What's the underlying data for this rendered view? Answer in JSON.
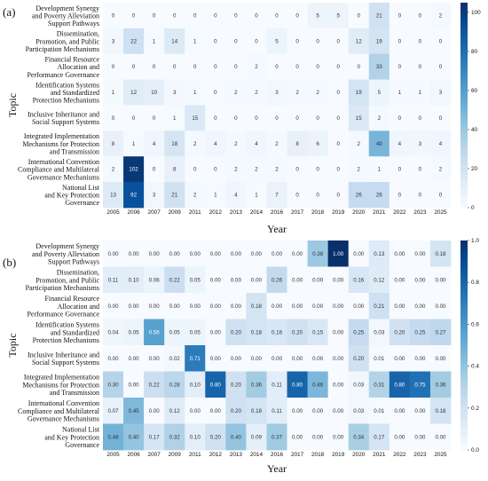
{
  "chart_data": [
    {
      "type": "heatmap",
      "panel_label": "(a)",
      "xlabel": "Year",
      "ylabel": "Topic",
      "x": [
        "2005",
        "2006",
        "2007",
        "2009",
        "2011",
        "2012",
        "2013",
        "2014",
        "2016",
        "2017",
        "2018",
        "2019",
        "2020",
        "2021",
        "2022",
        "2023",
        "2025"
      ],
      "y": [
        "Development Synergy\nand Poverty Alleviation\nSupport Pathways",
        "Dissemination,\nPromotion, and Public\nParticipation Mechanisms",
        "Financial Resource\nAllocation and\nPerformance Governance",
        "Identification Systems\nand Standardized\nProtection Mechanisms",
        "Inclusive Inheritance and\nSocial Support Systems",
        "Integrated Implementation\nMechanisms for Protection\nand Transmission",
        "International Convention\nCompliance and Multilateral\nGovernance Mechanisms",
        "National List\nand Key Protection\nGovernance"
      ],
      "values": [
        [
          0,
          0,
          0,
          0,
          0,
          0,
          0,
          0,
          0,
          0,
          5,
          5,
          0,
          21,
          0,
          0,
          2
        ],
        [
          3,
          22,
          1,
          14,
          1,
          0,
          0,
          0,
          5,
          0,
          0,
          0,
          12,
          19,
          0,
          0,
          0
        ],
        [
          0,
          0,
          0,
          0,
          0,
          0,
          0,
          2,
          0,
          0,
          0,
          0,
          0,
          33,
          0,
          0,
          0
        ],
        [
          1,
          12,
          10,
          3,
          1,
          0,
          2,
          2,
          3,
          2,
          2,
          0,
          19,
          5,
          1,
          1,
          3
        ],
        [
          0,
          0,
          0,
          1,
          15,
          0,
          0,
          0,
          0,
          0,
          0,
          0,
          15,
          2,
          0,
          0,
          0
        ],
        [
          8,
          1,
          4,
          18,
          2,
          4,
          2,
          4,
          2,
          8,
          6,
          0,
          2,
          49,
          4,
          3,
          4
        ],
        [
          2,
          102,
          0,
          8,
          0,
          0,
          2,
          2,
          2,
          0,
          0,
          0,
          2,
          1,
          0,
          0,
          2
        ],
        [
          13,
          92,
          3,
          21,
          2,
          1,
          4,
          1,
          7,
          0,
          0,
          0,
          26,
          26,
          0,
          0,
          0
        ]
      ],
      "value_format": "int",
      "colorbar": {
        "min": 0,
        "max": 105,
        "ticks": [
          "0",
          "20",
          "40",
          "60",
          "80",
          "100"
        ],
        "tick_values": [
          0,
          20,
          40,
          60,
          80,
          100
        ]
      },
      "colormap": {
        "low": "#f7fbff",
        "high": "#08306b"
      }
    },
    {
      "type": "heatmap",
      "panel_label": "(b)",
      "xlabel": "Year",
      "ylabel": "Topic",
      "x": [
        "2005",
        "2006",
        "2007",
        "2009",
        "2011",
        "2012",
        "2013",
        "2014",
        "2016",
        "2017",
        "2018",
        "2019",
        "2020",
        "2021",
        "2022",
        "2023",
        "2025"
      ],
      "y": [
        "Development Synergy\nand Poverty Alleviation\nSupport Pathways",
        "Dissemination,\nPromotion, and Public\nParticipation Mechanisms",
        "Financial Resource\nAllocation and\nPerformance Governance",
        "Identification Systems\nand Standardized\nProtection Mechanisms",
        "Inclusive Inheritance and\nSocial Support Systems",
        "Integrated Implementation\nMechanisms for Protection\nand Transmission",
        "International Convention\nCompliance and Multilateral\nGovernance Mechanisms",
        "National List\nand Key Protection\nGovernance"
      ],
      "values": [
        [
          0.0,
          0.0,
          0.0,
          0.0,
          0.0,
          0.0,
          0.0,
          0.0,
          0.0,
          0.0,
          0.38,
          1.0,
          0.0,
          0.13,
          0.0,
          0.0,
          0.18
        ],
        [
          0.11,
          0.1,
          0.06,
          0.22,
          0.05,
          0.0,
          0.0,
          0.0,
          0.26,
          0.0,
          0.0,
          0.0,
          0.16,
          0.12,
          0.0,
          0.0,
          0.0
        ],
        [
          0.0,
          0.0,
          0.0,
          0.0,
          0.0,
          0.0,
          0.0,
          0.18,
          0.0,
          0.0,
          0.0,
          0.0,
          0.0,
          0.21,
          0.0,
          0.0,
          0.0
        ],
        [
          0.04,
          0.05,
          0.56,
          0.05,
          0.05,
          0.0,
          0.2,
          0.18,
          0.16,
          0.2,
          0.15,
          0.0,
          0.25,
          0.03,
          0.2,
          0.25,
          0.27
        ],
        [
          0.0,
          0.0,
          0.0,
          0.02,
          0.71,
          0.0,
          0.0,
          0.0,
          0.0,
          0.0,
          0.0,
          0.0,
          0.2,
          0.01,
          0.0,
          0.0,
          0.0
        ],
        [
          0.3,
          0.0,
          0.22,
          0.28,
          0.1,
          0.8,
          0.2,
          0.36,
          0.11,
          0.8,
          0.46,
          0.0,
          0.03,
          0.31,
          0.8,
          0.75,
          0.36
        ],
        [
          0.07,
          0.45,
          0.0,
          0.12,
          0.0,
          0.0,
          0.2,
          0.18,
          0.11,
          0.0,
          0.0,
          0.0,
          0.03,
          0.01,
          0.0,
          0.0,
          0.18
        ],
        [
          0.48,
          0.4,
          0.17,
          0.32,
          0.1,
          0.2,
          0.4,
          0.09,
          0.37,
          0.0,
          0.0,
          0.0,
          0.34,
          0.17,
          0.0,
          0.0,
          0.0
        ]
      ],
      "value_format": "fixed2",
      "colorbar": {
        "min": 0,
        "max": 1,
        "ticks": [
          "0.0",
          "0.2",
          "0.4",
          "0.6",
          "0.8",
          "1.0"
        ],
        "tick_values": [
          0,
          0.2,
          0.4,
          0.6,
          0.8,
          1.0
        ]
      },
      "colormap": {
        "low": "#f7fbff",
        "high": "#08306b"
      }
    }
  ]
}
